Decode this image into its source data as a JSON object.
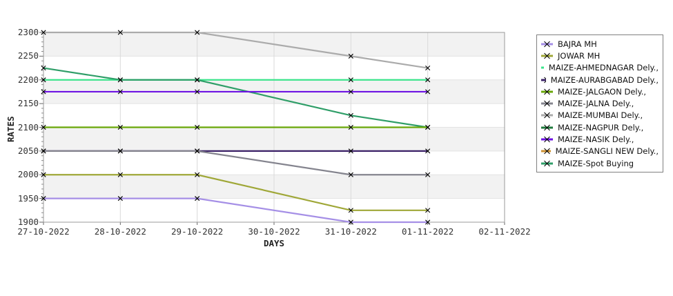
{
  "chart_data": {
    "type": "line",
    "title": "",
    "xlabel": "DAYS",
    "ylabel": "RATES",
    "x_axis_ticks": [
      "27-10-2022",
      "28-10-2022",
      "29-10-2022",
      "30-10-2022",
      "31-10-2022",
      "01-11-2022",
      "02-11-2022"
    ],
    "y_axis_ticks": [
      1900,
      1950,
      2000,
      2050,
      2100,
      2150,
      2200,
      2250,
      2300
    ],
    "ylim": [
      1900,
      2300
    ],
    "grid": true,
    "legend_position": "right",
    "marker": "x",
    "marker_color": "#000000",
    "band_color": "#f2f2f2",
    "point_dates": [
      "27-10-2022",
      "28-10-2022",
      "29-10-2022",
      "31-10-2022",
      "01-11-2022"
    ],
    "series": [
      {
        "name": "BAJRA MH",
        "color": "#a58fe6",
        "values": [
          1950,
          1950,
          1950,
          1900,
          1900
        ]
      },
      {
        "name": "JOWAR MH",
        "color": "#9fa737",
        "values": [
          2000,
          2000,
          2000,
          1925,
          1925
        ]
      },
      {
        "name": "MAIZE-AHMEDNAGAR Dely.,",
        "color": "#3be48b",
        "values": [
          2200,
          2200,
          2200,
          2200,
          2200
        ]
      },
      {
        "name": "MAIZE-AURABGABAD Dely.,",
        "color": "#3b2167",
        "values": [
          2050,
          2050,
          2050,
          2050,
          2050
        ]
      },
      {
        "name": "MAIZE-JALGAON Dely.,",
        "color": "#69a708",
        "values": [
          2100,
          2100,
          2100,
          2100,
          2100
        ]
      },
      {
        "name": "MAIZE-JALNA Dely.,",
        "color": "#84848e",
        "values": [
          2050,
          2050,
          2050,
          2000,
          2000
        ]
      },
      {
        "name": "MAIZE-MUMBAI Dely.,",
        "color": "#ababab",
        "values": [
          2300,
          2300,
          2300,
          2250,
          2225
        ]
      },
      {
        "name": "MAIZE-NAGPUR Dely.,",
        "color": "#1e7a3c",
        "values": null
      },
      {
        "name": "MAIZE-NASIK Dely.,",
        "color": "#6d12e3",
        "values": [
          2175,
          2175,
          2175,
          2175,
          2175
        ]
      },
      {
        "name": "MAIZE-SANGLI NEW Dely.,",
        "color": "#cd9233",
        "values": null
      },
      {
        "name": "MAIZE-Spot Buying",
        "color": "#2f9e68",
        "values": [
          2225,
          2200,
          2200,
          2125,
          2100
        ]
      }
    ],
    "draw_order": [
      "MAIZE-MUMBAI Dely.,",
      "MAIZE-AHMEDNAGAR Dely.,",
      "MAIZE-Spot Buying",
      "MAIZE-AURABGABAD Dely.,",
      "MAIZE-JALNA Dely.,",
      "MAIZE-JALGAON Dely.,",
      "JOWAR MH",
      "MAIZE-NASIK Dely.,",
      "BAJRA MH"
    ]
  }
}
